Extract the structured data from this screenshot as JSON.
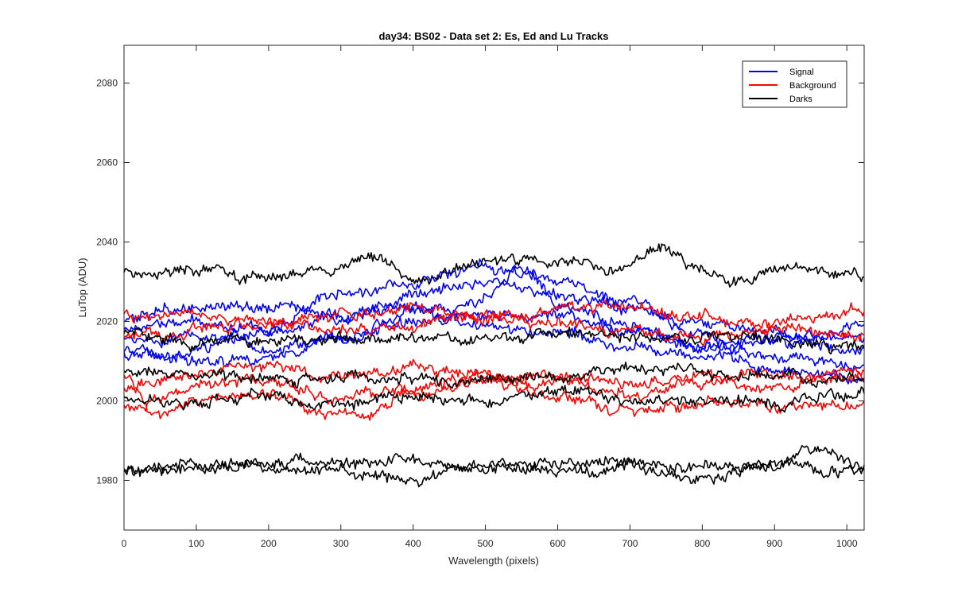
{
  "chart_data": {
    "type": "line",
    "title": "day34: BS02 - Data set 2: Es, Ed and Lu Tracks",
    "xlabel": "Wavelength (pixels)",
    "ylabel": "LuTop (ADU)",
    "xlim": [
      0,
      1024
    ],
    "ylim": [
      1967.5,
      2089.5
    ],
    "xticks": [
      0,
      100,
      200,
      300,
      400,
      500,
      600,
      700,
      800,
      900,
      1000
    ],
    "xtick_labels": [
      "0",
      "100",
      "200",
      "300",
      "400",
      "500",
      "600",
      "700",
      "800",
      "900",
      "1000"
    ],
    "yticks": [
      1980,
      2000,
      2020,
      2040,
      2060,
      2080
    ],
    "ytick_labels": [
      "1980",
      "2000",
      "2020",
      "2040",
      "2060",
      "2080"
    ],
    "grid": false,
    "legend_position": "top-right",
    "legend": [
      {
        "label": "Signal",
        "color": "#0000ff"
      },
      {
        "label": "Background",
        "color": "#ff0000"
      },
      {
        "label": "Darks",
        "color": "#000000"
      }
    ],
    "noise_amplitude": 1.3,
    "series": [
      {
        "group": "Signal",
        "color": "#0000ff",
        "anchors": [
          [
            0,
            2020
          ],
          [
            100,
            2024
          ],
          [
            200,
            2023
          ],
          [
            300,
            2022
          ],
          [
            400,
            2024
          ],
          [
            500,
            2021
          ],
          [
            600,
            2021
          ],
          [
            700,
            2018
          ],
          [
            800,
            2014
          ],
          [
            900,
            2016
          ],
          [
            1024,
            2013
          ]
        ]
      },
      {
        "group": "Signal",
        "color": "#0000ff",
        "anchors": [
          [
            0,
            2015
          ],
          [
            100,
            2016
          ],
          [
            200,
            2019
          ],
          [
            300,
            2027
          ],
          [
            400,
            2029
          ],
          [
            500,
            2034
          ],
          [
            600,
            2030
          ],
          [
            700,
            2024
          ],
          [
            800,
            2019
          ],
          [
            900,
            2017
          ],
          [
            1024,
            2016
          ]
        ]
      },
      {
        "group": "Signal",
        "color": "#0000ff",
        "anchors": [
          [
            0,
            2011
          ],
          [
            100,
            2013
          ],
          [
            200,
            2018
          ],
          [
            300,
            2021
          ],
          [
            400,
            2026
          ],
          [
            500,
            2030
          ],
          [
            600,
            2026
          ],
          [
            700,
            2023
          ],
          [
            800,
            2016
          ],
          [
            900,
            2011
          ],
          [
            1024,
            2009
          ]
        ]
      },
      {
        "group": "Signal",
        "color": "#0000ff",
        "anchors": [
          [
            0,
            2018
          ],
          [
            100,
            2020
          ],
          [
            200,
            2013
          ],
          [
            300,
            2016
          ],
          [
            400,
            2020
          ],
          [
            500,
            2025
          ],
          [
            550,
            2033
          ],
          [
            600,
            2025
          ],
          [
            700,
            2019
          ],
          [
            800,
            2013
          ],
          [
            900,
            2008
          ],
          [
            1024,
            2006
          ]
        ]
      },
      {
        "group": "Signal",
        "color": "#0000ff",
        "anchors": [
          [
            0,
            2013
          ],
          [
            100,
            2010
          ],
          [
            200,
            2011
          ],
          [
            300,
            2016
          ],
          [
            400,
            2022
          ],
          [
            500,
            2019
          ],
          [
            600,
            2017
          ],
          [
            700,
            2014
          ],
          [
            800,
            2011
          ],
          [
            900,
            2014
          ],
          [
            1024,
            2019
          ]
        ]
      },
      {
        "group": "Background",
        "color": "#ff0000",
        "anchors": [
          [
            0,
            2022
          ],
          [
            100,
            2021
          ],
          [
            200,
            2019
          ],
          [
            300,
            2021
          ],
          [
            400,
            2023
          ],
          [
            500,
            2021
          ],
          [
            600,
            2023
          ],
          [
            700,
            2024
          ],
          [
            800,
            2021
          ],
          [
            900,
            2020
          ],
          [
            1024,
            2022
          ]
        ]
      },
      {
        "group": "Background",
        "color": "#ff0000",
        "anchors": [
          [
            0,
            2017
          ],
          [
            100,
            2018
          ],
          [
            200,
            2020
          ],
          [
            300,
            2018
          ],
          [
            400,
            2019
          ],
          [
            500,
            2021
          ],
          [
            600,
            2019
          ],
          [
            700,
            2017
          ],
          [
            800,
            2016
          ],
          [
            900,
            2018
          ],
          [
            1024,
            2016
          ]
        ]
      },
      {
        "group": "Background",
        "color": "#ff0000",
        "anchors": [
          [
            0,
            2004
          ],
          [
            100,
            2007
          ],
          [
            200,
            2009
          ],
          [
            300,
            2006
          ],
          [
            400,
            2008
          ],
          [
            500,
            2006
          ],
          [
            600,
            2007
          ],
          [
            700,
            2004
          ],
          [
            800,
            2006
          ],
          [
            900,
            2007
          ],
          [
            1024,
            2006
          ]
        ]
      },
      {
        "group": "Background",
        "color": "#ff0000",
        "anchors": [
          [
            0,
            1999
          ],
          [
            100,
            2003
          ],
          [
            200,
            2005
          ],
          [
            300,
            2001
          ],
          [
            400,
            2003
          ],
          [
            500,
            2006
          ],
          [
            600,
            2004
          ],
          [
            700,
            2002
          ],
          [
            800,
            2005
          ],
          [
            900,
            2003
          ],
          [
            1024,
            2008
          ]
        ]
      },
      {
        "group": "Background",
        "color": "#ff0000",
        "anchors": [
          [
            0,
            2006
          ],
          [
            50,
            1996
          ],
          [
            100,
            2000
          ],
          [
            200,
            2002
          ],
          [
            300,
            1996
          ],
          [
            400,
            2001
          ],
          [
            500,
            2005
          ],
          [
            600,
            2001
          ],
          [
            700,
            1998
          ],
          [
            800,
            2000
          ],
          [
            900,
            1998
          ],
          [
            1024,
            1999
          ]
        ]
      },
      {
        "group": "Darks",
        "color": "#000000",
        "anchors": [
          [
            0,
            2033
          ],
          [
            100,
            2033
          ],
          [
            200,
            2031
          ],
          [
            300,
            2033
          ],
          [
            340,
            2037
          ],
          [
            400,
            2030
          ],
          [
            500,
            2035
          ],
          [
            600,
            2035
          ],
          [
            700,
            2033
          ],
          [
            730,
            2038
          ],
          [
            800,
            2033
          ],
          [
            850,
            2030
          ],
          [
            900,
            2034
          ],
          [
            1024,
            2032
          ]
        ]
      },
      {
        "group": "Darks",
        "color": "#000000",
        "anchors": [
          [
            0,
            2017
          ],
          [
            100,
            2015
          ],
          [
            200,
            2016
          ],
          [
            300,
            2015
          ],
          [
            400,
            2016
          ],
          [
            500,
            2016
          ],
          [
            600,
            2017
          ],
          [
            700,
            2016
          ],
          [
            800,
            2016
          ],
          [
            900,
            2015
          ],
          [
            1024,
            2014
          ]
        ]
      },
      {
        "group": "Darks",
        "color": "#000000",
        "anchors": [
          [
            0,
            2007
          ],
          [
            100,
            2007
          ],
          [
            200,
            2005
          ],
          [
            300,
            2006
          ],
          [
            400,
            2006
          ],
          [
            500,
            2005
          ],
          [
            600,
            2006
          ],
          [
            700,
            2008
          ],
          [
            800,
            2007
          ],
          [
            900,
            2006
          ],
          [
            1024,
            2005
          ]
        ]
      },
      {
        "group": "Darks",
        "color": "#000000",
        "anchors": [
          [
            0,
            2000
          ],
          [
            100,
            2000
          ],
          [
            200,
            2001
          ],
          [
            300,
            1999
          ],
          [
            400,
            2001
          ],
          [
            500,
            2000
          ],
          [
            600,
            2002
          ],
          [
            700,
            2000
          ],
          [
            800,
            2000
          ],
          [
            900,
            2000
          ],
          [
            1024,
            2002
          ]
        ]
      },
      {
        "group": "Darks",
        "color": "#000000",
        "anchors": [
          [
            0,
            1983
          ],
          [
            100,
            1983
          ],
          [
            200,
            1985
          ],
          [
            300,
            1984
          ],
          [
            400,
            1985
          ],
          [
            500,
            1983
          ],
          [
            600,
            1984
          ],
          [
            700,
            1984
          ],
          [
            800,
            1983
          ],
          [
            900,
            1984
          ],
          [
            950,
            1988
          ],
          [
            1024,
            1984
          ]
        ]
      },
      {
        "group": "Darks",
        "color": "#000000",
        "anchors": [
          [
            0,
            1982
          ],
          [
            100,
            1984
          ],
          [
            200,
            1983
          ],
          [
            300,
            1982
          ],
          [
            400,
            1981
          ],
          [
            500,
            1984
          ],
          [
            600,
            1983
          ],
          [
            700,
            1983
          ],
          [
            800,
            1980
          ],
          [
            900,
            1983
          ],
          [
            1024,
            1982
          ]
        ]
      }
    ]
  }
}
